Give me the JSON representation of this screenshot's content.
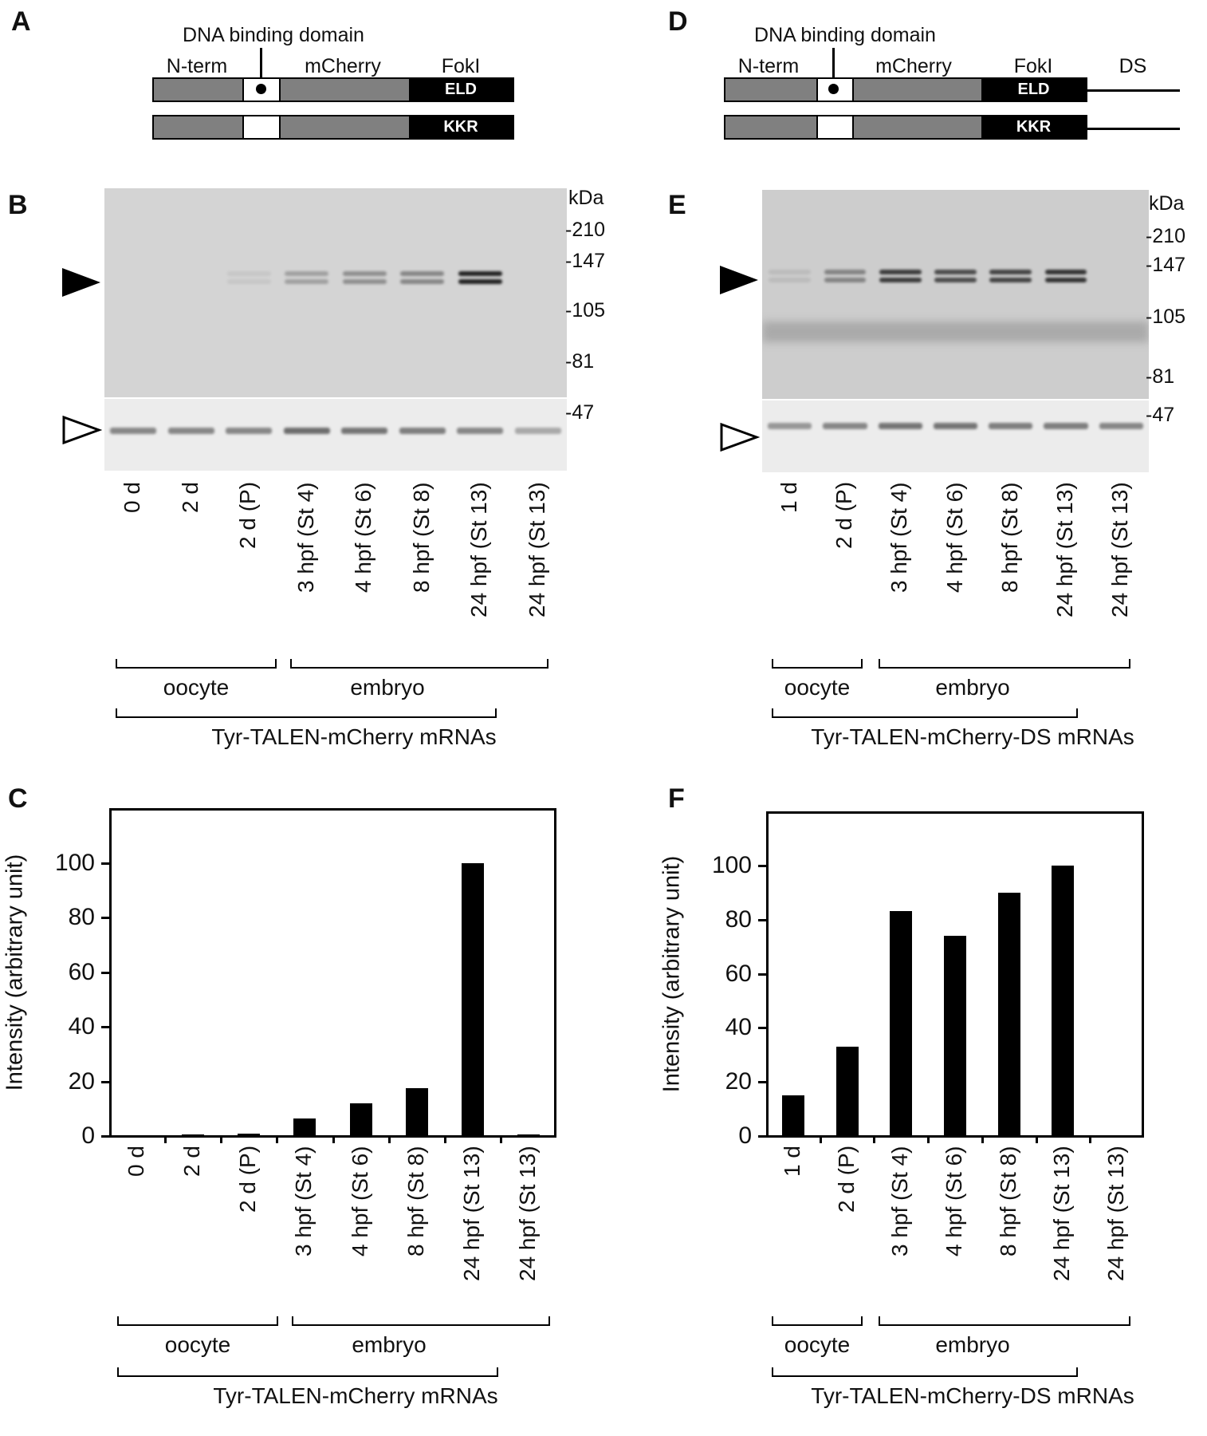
{
  "panels": {
    "A": {
      "letter": "A",
      "dna_label": "DNA binding domain",
      "nterm": "N-term",
      "mcherry": "mCherry",
      "foki": "FokI",
      "eld": "ELD",
      "kkr": "KKR"
    },
    "D": {
      "letter": "D",
      "dna_label": "DNA binding domain",
      "nterm": "N-term",
      "mcherry": "mCherry",
      "foki": "FokI",
      "ds": "DS",
      "eld": "ELD",
      "kkr": "KKR"
    },
    "B": {
      "letter": "B",
      "kda_unit": "kDa",
      "markers": [
        "210",
        "147",
        "105",
        "81",
        "47"
      ],
      "lanes": [
        "0 d",
        "2 d",
        "2 d (P)",
        "3 hpf (St 4)",
        "4 hpf (St 6)",
        "8 hpf (St 8)",
        "24 hpf (St 13)",
        "24 hpf (St 13)"
      ],
      "band_intensity": [
        0,
        0,
        0.02,
        0.25,
        0.35,
        0.4,
        1.0,
        0
      ],
      "loading_intensity": [
        0.6,
        0.6,
        0.6,
        0.75,
        0.7,
        0.65,
        0.6,
        0.4
      ],
      "group1": "oocyte",
      "group2": "embryo",
      "construct": "Tyr-TALEN-mCherry mRNAs"
    },
    "E": {
      "letter": "E",
      "kda_unit": "kDa",
      "markers": [
        "210",
        "147",
        "105",
        "81",
        "47"
      ],
      "lanes": [
        "1 d",
        "2 d (P)",
        "3 hpf (St 4)",
        "4 hpf (St 6)",
        "8 hpf (St 8)",
        "24 hpf (St 13)",
        "24 hpf (St 13)"
      ],
      "band_intensity": [
        0.05,
        0.4,
        0.85,
        0.75,
        0.8,
        0.9,
        0
      ],
      "loading_intensity": [
        0.5,
        0.6,
        0.7,
        0.7,
        0.65,
        0.65,
        0.6
      ],
      "group1": "oocyte",
      "group2": "embryo",
      "construct": "Tyr-TALEN-mCherry-DS mRNAs"
    },
    "C": {
      "letter": "C",
      "group1": "oocyte",
      "group2": "embryo",
      "construct": "Tyr-TALEN-mCherry mRNAs"
    },
    "F": {
      "letter": "F",
      "group1": "oocyte",
      "group2": "embryo",
      "construct": "Tyr-TALEN-mCherry-DS mRNAs"
    }
  },
  "chart_data": [
    {
      "panel": "C",
      "type": "bar",
      "categories": [
        "0 d",
        "2 d",
        "2 d (P)",
        "3 hpf (St 4)",
        "4 hpf (St 6)",
        "8 hpf (St 8)",
        "24 hpf (St 13)",
        "24 hpf (St 13)"
      ],
      "values": [
        0,
        0.5,
        1,
        6.5,
        12,
        17.5,
        100,
        0.5
      ],
      "title": "",
      "xlabel": "",
      "ylabel": "Intensity (arbitrary unit)",
      "ylim": [
        0,
        120
      ],
      "yticks": [
        "0",
        "20",
        "40",
        "60",
        "80",
        "100"
      ],
      "grid": false
    },
    {
      "panel": "F",
      "type": "bar",
      "categories": [
        "1 d",
        "2 d (P)",
        "3 hpf (St 4)",
        "4 hpf (St 6)",
        "8 hpf (St 8)",
        "24 hpf (St 13)",
        "24 hpf (St 13)"
      ],
      "values": [
        15,
        33,
        83,
        74,
        90,
        100,
        0
      ],
      "title": "",
      "xlabel": "",
      "ylabel": "Intensity (arbitrary unit)",
      "ylim": [
        0,
        120
      ],
      "yticks": [
        "0",
        "20",
        "40",
        "60",
        "80",
        "100"
      ],
      "grid": false
    }
  ]
}
